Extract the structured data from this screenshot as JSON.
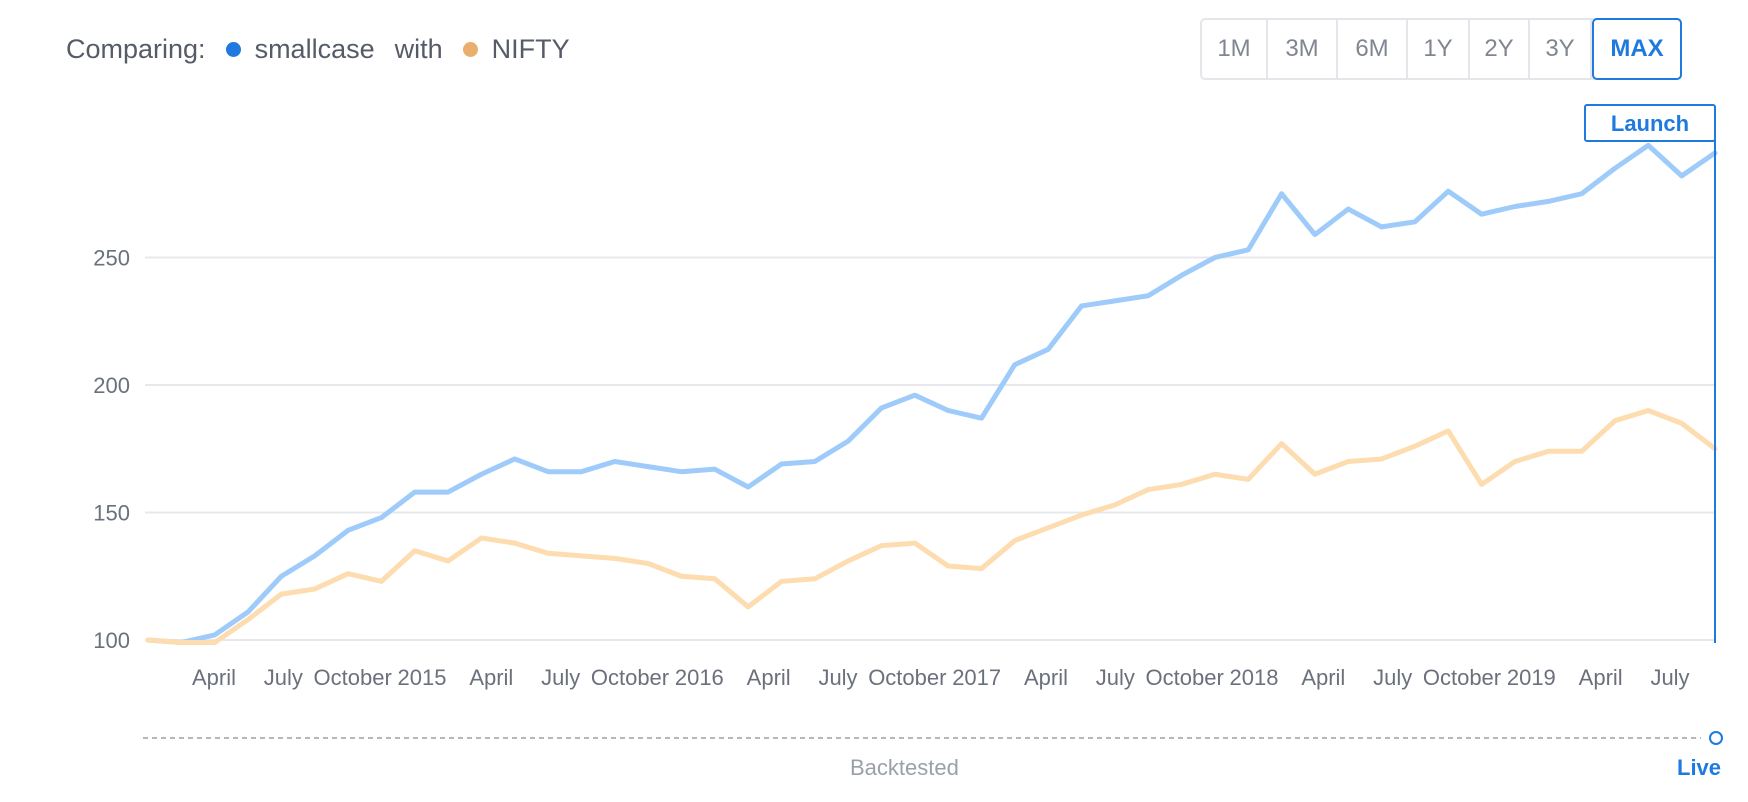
{
  "legend": {
    "prefix": "Comparing:",
    "series_a_label": "smallcase",
    "joiner": "with",
    "series_b_label": "NIFTY"
  },
  "range_buttons": [
    {
      "label": "1M",
      "active": false
    },
    {
      "label": "3M",
      "active": false
    },
    {
      "label": "6M",
      "active": false
    },
    {
      "label": "1Y",
      "active": false
    },
    {
      "label": "2Y",
      "active": false
    },
    {
      "label": "3Y",
      "active": false
    },
    {
      "label": "MAX",
      "active": true
    }
  ],
  "launch_label": "Launch",
  "footer": {
    "backtested_label": "Backtested",
    "live_label": "Live"
  },
  "colors": {
    "smallcase": "#9ecbf9",
    "smallcase_live": "#4a8ad8",
    "smallcase_dot": "#1f7ae0",
    "nifty": "#fddcb0",
    "nifty_live": "#e0a862",
    "nifty_dot": "#e8b06c",
    "accent": "#1f7ae0",
    "grid": "#e6e8ec",
    "axis_text": "#6b717c"
  },
  "chart_data": {
    "type": "line",
    "x_tick_labels": [
      "April",
      "July",
      "October",
      "2015",
      "April",
      "July",
      "October",
      "2016",
      "April",
      "July",
      "October",
      "2017",
      "April",
      "July",
      "October",
      "2018",
      "April",
      "July",
      "October",
      "2019",
      "April",
      "July"
    ],
    "y_ticks": [
      100,
      150,
      200,
      250
    ],
    "ylim": [
      100,
      300
    ],
    "grid": true,
    "launch_index": 48,
    "series": [
      {
        "name": "smallcase",
        "values": [
          100,
          99,
          102,
          111,
          125,
          133,
          143,
          148,
          158,
          158,
          165,
          171,
          166,
          166,
          170,
          168,
          166,
          167,
          160,
          169,
          170,
          178,
          191,
          196,
          190,
          187,
          208,
          214,
          231,
          233,
          235,
          243,
          250,
          253,
          275,
          259,
          269,
          262,
          264,
          276,
          267,
          270,
          272,
          275,
          285,
          294,
          282,
          291
        ]
      },
      {
        "name": "NIFTY",
        "values": [
          100,
          99,
          99,
          108,
          118,
          120,
          126,
          123,
          135,
          131,
          140,
          138,
          134,
          133,
          132,
          130,
          125,
          124,
          113,
          123,
          124,
          131,
          137,
          138,
          129,
          128,
          139,
          144,
          149,
          153,
          159,
          161,
          165,
          163,
          177,
          165,
          170,
          171,
          176,
          182,
          161,
          170,
          174,
          174,
          186,
          190,
          185,
          175
        ]
      }
    ]
  }
}
